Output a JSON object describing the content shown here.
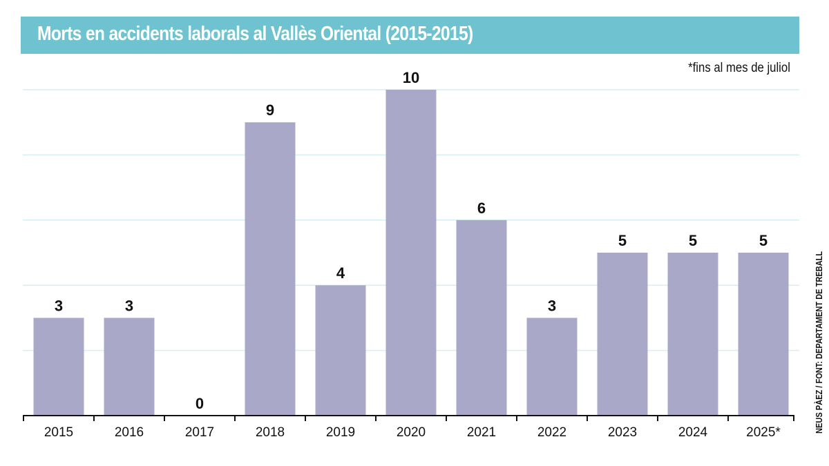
{
  "title": "Morts en accidents laborals al Vallès Oriental (2015-2015)",
  "note": "*fins al mes de juliol",
  "credit": "NEUS PÀEZ / FONT: DEPARTAMENT DE TREBALL",
  "chart_data": {
    "type": "bar",
    "title": "Morts en accidents laborals al Vallès Oriental (2015-2015)",
    "categories": [
      "2015",
      "2016",
      "2017",
      "2018",
      "2019",
      "2020",
      "2021",
      "2022",
      "2023",
      "2024",
      "2025*"
    ],
    "values": [
      3,
      3,
      0,
      9,
      4,
      10,
      6,
      3,
      5,
      5,
      5
    ],
    "ylim": [
      0,
      10
    ],
    "grid": true,
    "gridlines": [
      2,
      4,
      6,
      8,
      10
    ],
    "colors": {
      "bar": "#a9a8c8",
      "title_band": "#6fc3d0",
      "grid": "#d6eef2"
    }
  }
}
